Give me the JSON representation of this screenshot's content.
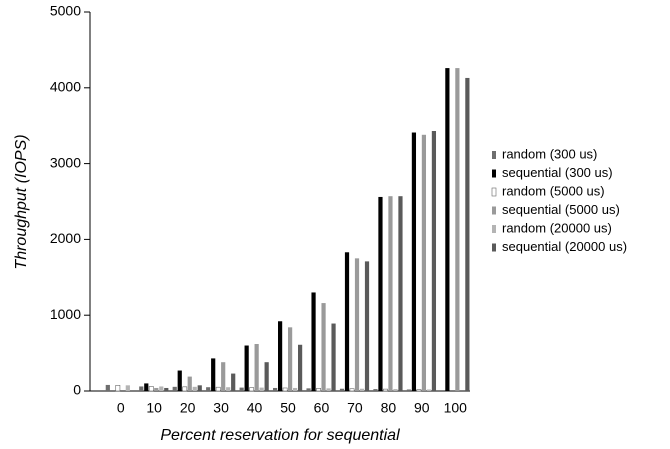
{
  "chart_data": {
    "type": "bar",
    "x_label": "Percent reservation for sequential",
    "y_label": "Throughput (IOPS)",
    "categories": [
      "0",
      "10",
      "20",
      "30",
      "40",
      "50",
      "60",
      "70",
      "80",
      "90",
      "100"
    ],
    "series": [
      {
        "name": "random (300 us)",
        "color": "#6e6e6e",
        "values": [
          80,
          60,
          55,
          50,
          45,
          40,
          35,
          30,
          25,
          20,
          0
        ]
      },
      {
        "name": "sequential (300 us)",
        "color": "#000000",
        "values": [
          0,
          100,
          270,
          430,
          600,
          920,
          1300,
          1830,
          2560,
          3410,
          4260
        ]
      },
      {
        "name": "random (5000 us)",
        "color": "#ffffff",
        "values": [
          75,
          60,
          55,
          50,
          45,
          40,
          35,
          30,
          25,
          20,
          0
        ]
      },
      {
        "name": "sequential (5000 us)",
        "color": "#9a9a9a",
        "values": [
          0,
          40,
          190,
          380,
          620,
          840,
          1160,
          1750,
          2570,
          3380,
          4260
        ]
      },
      {
        "name": "random (20000 us)",
        "color": "#b4b4b4",
        "values": [
          75,
          60,
          55,
          50,
          45,
          40,
          35,
          30,
          25,
          20,
          0
        ]
      },
      {
        "name": "sequential (20000 us)",
        "color": "#5a5a5a",
        "values": [
          0,
          40,
          75,
          230,
          380,
          610,
          890,
          1710,
          2570,
          3430,
          4130
        ]
      }
    ],
    "ylim": [
      0,
      5000
    ],
    "yticks": [
      0,
      1000,
      2000,
      3000,
      4000,
      5000
    ]
  }
}
